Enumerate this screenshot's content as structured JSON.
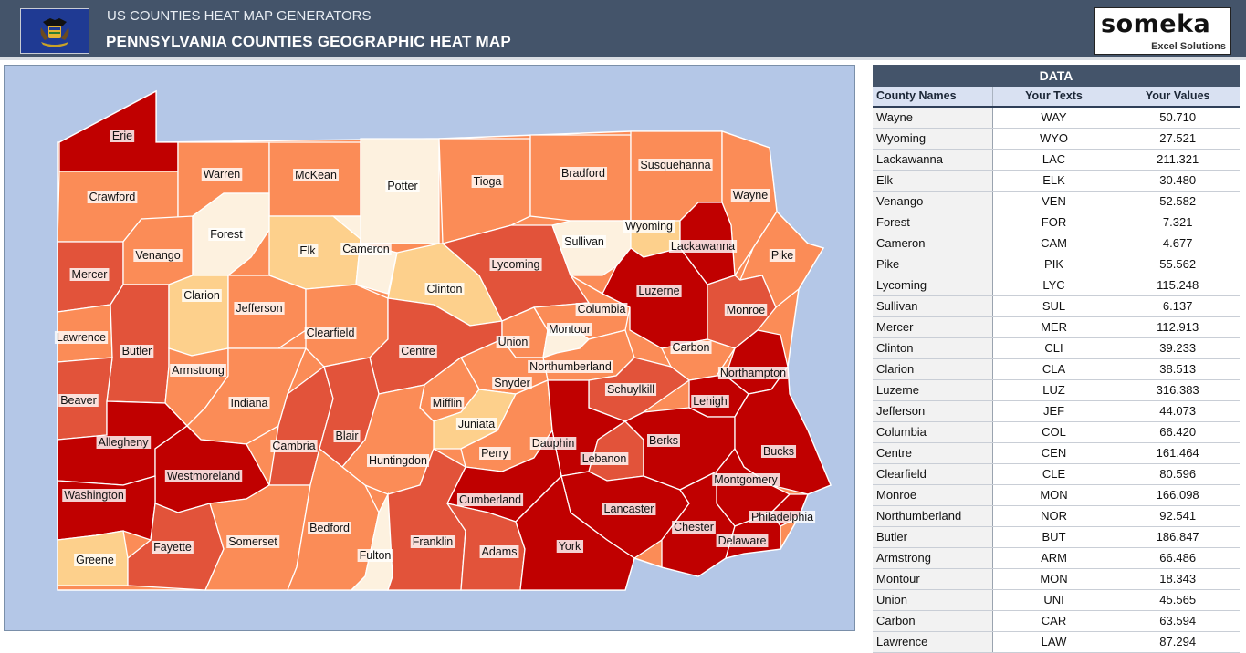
{
  "header": {
    "subtitle": "US COUNTIES HEAT MAP GENERATORS",
    "title": "PENNSYLVANIA COUNTIES GEOGRAPHIC HEAT MAP",
    "logo_brand": "someka",
    "logo_sub": "Excel Solutions"
  },
  "colors": {
    "header_bg": "#44546a",
    "map_bg": "#b4c7e7",
    "scale": [
      "#fdf1df",
      "#fdd08c",
      "#fb8c57",
      "#e2533a",
      "#c00000"
    ]
  },
  "map": {
    "counties": [
      {
        "name": "Erie",
        "level": 4
      },
      {
        "name": "Crawford",
        "level": 2
      },
      {
        "name": "Warren",
        "level": 2
      },
      {
        "name": "McKean",
        "level": 2
      },
      {
        "name": "Potter",
        "level": 0
      },
      {
        "name": "Tioga",
        "level": 2
      },
      {
        "name": "Bradford",
        "level": 2
      },
      {
        "name": "Susquehanna",
        "level": 2
      },
      {
        "name": "Wayne",
        "level": 2
      },
      {
        "name": "Mercer",
        "level": 3
      },
      {
        "name": "Venango",
        "level": 2
      },
      {
        "name": "Forest",
        "level": 0
      },
      {
        "name": "Elk",
        "level": 1
      },
      {
        "name": "Cameron",
        "level": 0
      },
      {
        "name": "Clinton",
        "level": 1
      },
      {
        "name": "Lycoming",
        "level": 3
      },
      {
        "name": "Sullivan",
        "level": 0
      },
      {
        "name": "Wyoming",
        "level": 1
      },
      {
        "name": "Lackawanna",
        "level": 4
      },
      {
        "name": "Pike",
        "level": 2
      },
      {
        "name": "Lawrence",
        "level": 2
      },
      {
        "name": "Butler",
        "level": 3
      },
      {
        "name": "Clarion",
        "level": 1
      },
      {
        "name": "Jefferson",
        "level": 2
      },
      {
        "name": "Clearfield",
        "level": 2
      },
      {
        "name": "Centre",
        "level": 3
      },
      {
        "name": "Union",
        "level": 2
      },
      {
        "name": "Montour",
        "level": 0
      },
      {
        "name": "Columbia",
        "level": 2
      },
      {
        "name": "Luzerne",
        "level": 4
      },
      {
        "name": "Monroe",
        "level": 3
      },
      {
        "name": "Carbon",
        "level": 2
      },
      {
        "name": "Northumberland",
        "level": 2
      },
      {
        "name": "Snyder",
        "level": 2
      },
      {
        "name": "Beaver",
        "level": 3
      },
      {
        "name": "Armstrong",
        "level": 2
      },
      {
        "name": "Indiana",
        "level": 2
      },
      {
        "name": "Mifflin",
        "level": 2
      },
      {
        "name": "Juniata",
        "level": 1
      },
      {
        "name": "Schuylkill",
        "level": 3
      },
      {
        "name": "Northampton",
        "level": 4
      },
      {
        "name": "Lehigh",
        "level": 4
      },
      {
        "name": "Allegheny",
        "level": 4
      },
      {
        "name": "Cambria",
        "level": 3
      },
      {
        "name": "Blair",
        "level": 3
      },
      {
        "name": "Huntingdon",
        "level": 2
      },
      {
        "name": "Perry",
        "level": 2
      },
      {
        "name": "Dauphin",
        "level": 4
      },
      {
        "name": "Lebanon",
        "level": 3
      },
      {
        "name": "Berks",
        "level": 4
      },
      {
        "name": "Bucks",
        "level": 4
      },
      {
        "name": "Westmoreland",
        "level": 4
      },
      {
        "name": "Washington",
        "level": 4
      },
      {
        "name": "Cumberland",
        "level": 4
      },
      {
        "name": "Montgomery",
        "level": 4
      },
      {
        "name": "Lancaster",
        "level": 4
      },
      {
        "name": "Chester",
        "level": 4
      },
      {
        "name": "Philadelphia",
        "level": 4
      },
      {
        "name": "Delaware",
        "level": 4
      },
      {
        "name": "Greene",
        "level": 1
      },
      {
        "name": "Fayette",
        "level": 3
      },
      {
        "name": "Somerset",
        "level": 2
      },
      {
        "name": "Bedford",
        "level": 2
      },
      {
        "name": "Fulton",
        "level": 0
      },
      {
        "name": "Franklin",
        "level": 3
      },
      {
        "name": "Adams",
        "level": 3
      },
      {
        "name": "York",
        "level": 4
      }
    ]
  },
  "table": {
    "title": "DATA",
    "headers": [
      "County Names",
      "Your Texts",
      "Your Values"
    ],
    "rows": [
      [
        "Wayne",
        "WAY",
        "50.710"
      ],
      [
        "Wyoming",
        "WYO",
        "27.521"
      ],
      [
        "Lackawanna",
        "LAC",
        "211.321"
      ],
      [
        "Elk",
        "ELK",
        "30.480"
      ],
      [
        "Venango",
        "VEN",
        "52.582"
      ],
      [
        "Forest",
        "FOR",
        "7.321"
      ],
      [
        "Cameron",
        "CAM",
        "4.677"
      ],
      [
        "Pike",
        "PIK",
        "55.562"
      ],
      [
        "Lycoming",
        "LYC",
        "115.248"
      ],
      [
        "Sullivan",
        "SUL",
        "6.137"
      ],
      [
        "Mercer",
        "MER",
        "112.913"
      ],
      [
        "Clinton",
        "CLI",
        "39.233"
      ],
      [
        "Clarion",
        "CLA",
        "38.513"
      ],
      [
        "Luzerne",
        "LUZ",
        "316.383"
      ],
      [
        "Jefferson",
        "JEF",
        "44.073"
      ],
      [
        "Columbia",
        "COL",
        "66.420"
      ],
      [
        "Centre",
        "CEN",
        "161.464"
      ],
      [
        "Clearfield",
        "CLE",
        "80.596"
      ],
      [
        "Monroe",
        "MON",
        "166.098"
      ],
      [
        "Northumberland",
        "NOR",
        "92.541"
      ],
      [
        "Butler",
        "BUT",
        "186.847"
      ],
      [
        "Armstrong",
        "ARM",
        "66.486"
      ],
      [
        "Montour",
        "MON",
        "18.343"
      ],
      [
        "Union",
        "UNI",
        "45.565"
      ],
      [
        "Carbon",
        "CAR",
        "63.594"
      ],
      [
        "Lawrence",
        "LAW",
        "87.294"
      ]
    ]
  }
}
